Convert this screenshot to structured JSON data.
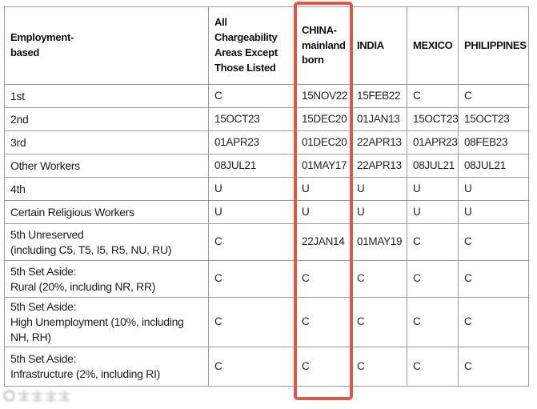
{
  "highlight": {
    "color": "#e25549",
    "annotated_column": "CHINA-mainland born"
  },
  "table": {
    "columns": [
      "Employment-\nbased",
      "All Chargeability Areas Except Those Listed",
      "CHINA-mainland born",
      "INDIA",
      "MEXICO",
      "PHILIPPINES"
    ],
    "rows": [
      {
        "label": "1st",
        "values": [
          "C",
          "15NOV22",
          "15FEB22",
          "C",
          "C"
        ]
      },
      {
        "label": "2nd",
        "values": [
          "15OCT23",
          "15DEC20",
          "01JAN13",
          "15OCT23",
          "15OCT23"
        ]
      },
      {
        "label": "3rd",
        "values": [
          "01APR23",
          "01DEC20",
          "22APR13",
          "01APR23",
          "08FEB23"
        ]
      },
      {
        "label": "Other Workers",
        "values": [
          "08JUL21",
          "01MAY17",
          "22APR13",
          "08JUL21",
          "08JUL21"
        ]
      },
      {
        "label": "4th",
        "values": [
          "U",
          "U",
          "U",
          "U",
          "U"
        ]
      },
      {
        "label": "Certain Religious Workers",
        "values": [
          "U",
          "U",
          "U",
          "U",
          "U"
        ]
      },
      {
        "label": "5th Unreserved\n(including C5, T5, I5, R5, NU, RU)",
        "values": [
          "C",
          "22JAN14",
          "01MAY19",
          "C",
          "C"
        ]
      },
      {
        "label": "5th Set Aside:\nRural (20%, including NR, RR)",
        "values": [
          "C",
          "C",
          "C",
          "C",
          "C"
        ]
      },
      {
        "label": "5th Set Aside:\nHigh Unemployment (10%, including NH, RH)",
        "values": [
          "C",
          "C",
          "C",
          "C",
          "C"
        ]
      },
      {
        "label": "5th Set Aside:\nInfrastructure (2%, including RI)",
        "values": [
          "C",
          "C",
          "C",
          "C",
          "C"
        ]
      }
    ]
  }
}
